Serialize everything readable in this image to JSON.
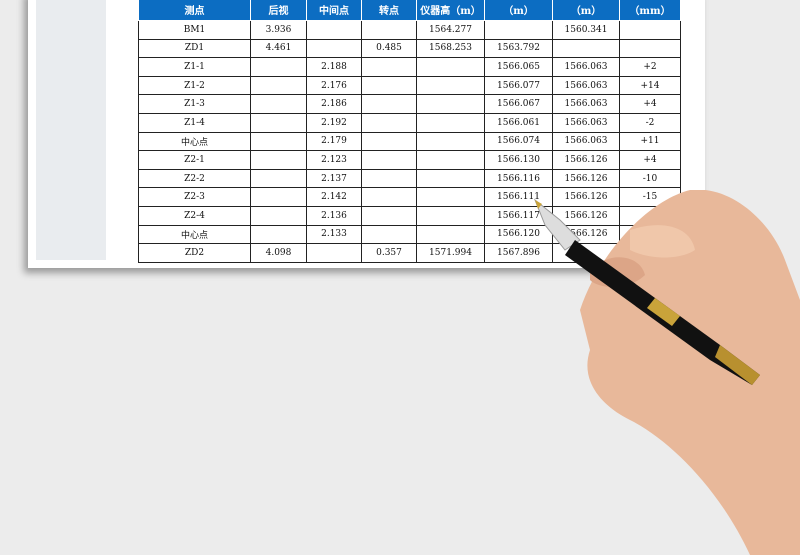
{
  "table": {
    "headers": [
      "测点",
      "后视",
      "中间点",
      "转点",
      "仪器高（m）",
      "（m）",
      "（m）",
      "（mm）"
    ],
    "rows": [
      [
        "BM1",
        "3.936",
        "",
        "",
        "1564.277",
        "",
        "1560.341",
        ""
      ],
      [
        "ZD1",
        "4.461",
        "",
        "0.485",
        "1568.253",
        "1563.792",
        "",
        ""
      ],
      [
        "Z1-1",
        "",
        "2.188",
        "",
        "",
        "1566.065",
        "1566.063",
        "+2"
      ],
      [
        "Z1-2",
        "",
        "2.176",
        "",
        "",
        "1566.077",
        "1566.063",
        "+14"
      ],
      [
        "Z1-3",
        "",
        "2.186",
        "",
        "",
        "1566.067",
        "1566.063",
        "+4"
      ],
      [
        "Z1-4",
        "",
        "2.192",
        "",
        "",
        "1566.061",
        "1566.063",
        "-2"
      ],
      [
        "中心点",
        "",
        "2.179",
        "",
        "",
        "1566.074",
        "1566.063",
        "+11"
      ],
      [
        "Z2-1",
        "",
        "2.123",
        "",
        "",
        "1566.130",
        "1566.126",
        "+4"
      ],
      [
        "Z2-2",
        "",
        "2.137",
        "",
        "",
        "1566.116",
        "1566.126",
        "-10"
      ],
      [
        "Z2-3",
        "",
        "2.142",
        "",
        "",
        "1566.111",
        "1566.126",
        "-15"
      ],
      [
        "Z2-4",
        "",
        "2.136",
        "",
        "",
        "1566.117",
        "1566.126",
        ""
      ],
      [
        "中心点",
        "",
        "2.133",
        "",
        "",
        "1566.120",
        "1566.126",
        ""
      ],
      [
        "ZD2",
        "4.098",
        "",
        "0.357",
        "1571.994",
        "1567.896",
        "",
        ""
      ]
    ]
  },
  "colors": {
    "header": "#0c6dc2"
  }
}
